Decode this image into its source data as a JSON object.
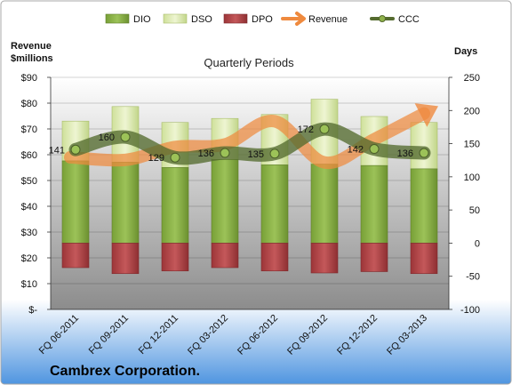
{
  "colors": {
    "dio": "#8fb24a",
    "dso": "#dbe9b0",
    "dpo": "#b5474a",
    "revenue": "#ef8a3e",
    "ccc": "#556b2f",
    "plot_bg_top": "#ffffff",
    "plot_bg_bottom": "#8c8c8c",
    "frame_top": "#ffffff",
    "frame_bottom": "#4f95e0"
  },
  "chart_data": {
    "type": "bar",
    "title": "Quarterly Periods",
    "company": "Cambrex Corporation.",
    "left_axis": {
      "label_line1": "Revenue",
      "label_line2": "$millions",
      "min": 0,
      "max": 90,
      "ticks": [
        0,
        10,
        20,
        30,
        40,
        50,
        60,
        70,
        80,
        90
      ],
      "tick_labels": [
        "$-",
        "$10",
        "$20",
        "$30",
        "$40",
        "$50",
        "$60",
        "$70",
        "$80",
        "$90"
      ]
    },
    "right_axis": {
      "label": "Days",
      "min": -100,
      "max": 250,
      "ticks": [
        -100,
        -50,
        0,
        50,
        100,
        150,
        200,
        250
      ],
      "tick_labels": [
        "-100",
        "-50",
        "0",
        "50",
        "100",
        "150",
        "200",
        "250"
      ]
    },
    "categories": [
      "FQ 06-2011",
      "FQ 09-2011",
      "FQ 12-2011",
      "FQ 03-2012",
      "FQ 06-2012",
      "FQ 09-2012",
      "FQ 12-2012",
      "FQ 03-2013"
    ],
    "legend": [
      "DIO",
      "DSO",
      "DPO",
      "Revenue",
      "CCC"
    ],
    "series": [
      {
        "name": "DIO",
        "axis": "right",
        "values": [
          124,
          122,
          114,
          126,
          118,
          119,
          117,
          112
        ]
      },
      {
        "name": "DSO",
        "axis": "right",
        "values": [
          60,
          84,
          68,
          62,
          76,
          98,
          74,
          70
        ]
      },
      {
        "name": "DPO",
        "axis": "right",
        "values": [
          -37,
          -46,
          -42,
          -37,
          -42,
          -45,
          -43,
          -46
        ]
      },
      {
        "name": "Revenue",
        "axis": "left",
        "values": [
          59,
          58,
          63,
          64,
          73,
          57,
          66,
          76
        ]
      },
      {
        "name": "CCC",
        "axis": "right",
        "values": [
          141,
          160,
          129,
          136,
          135,
          172,
          142,
          136
        ]
      }
    ],
    "ccc_labels": [
      "141",
      "160",
      "129",
      "136",
      "135",
      "172",
      "142",
      "136"
    ]
  }
}
